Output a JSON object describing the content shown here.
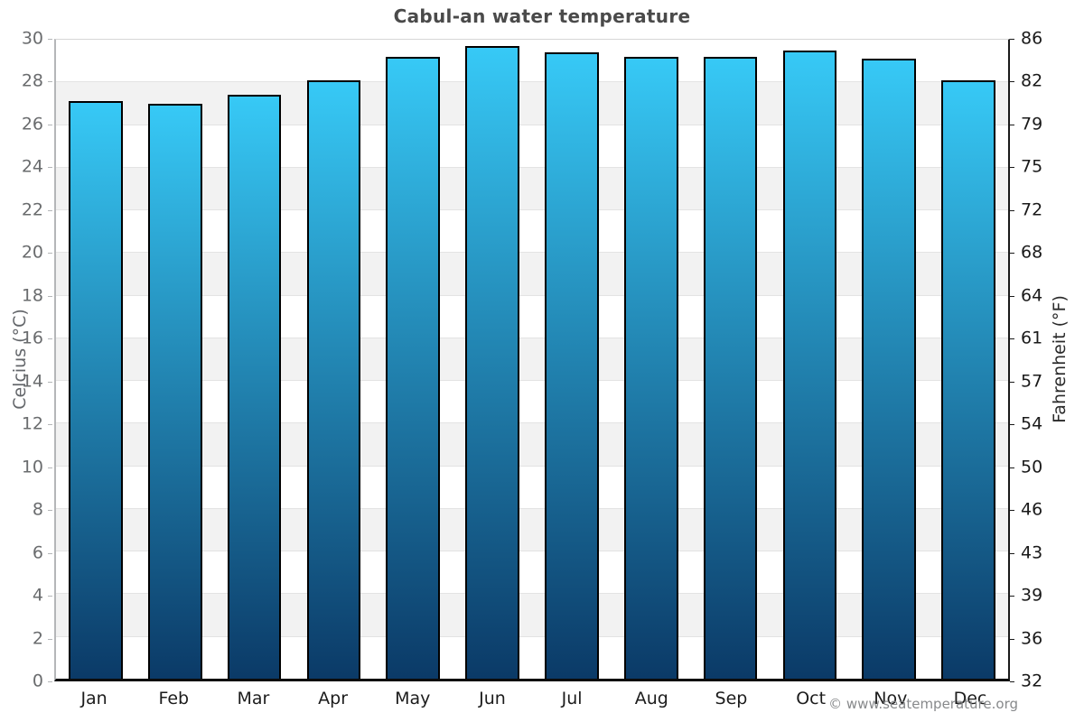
{
  "title": "Cabul-an water temperature",
  "footer": {
    "credit": "© www.seatemperature.org"
  },
  "chart_data": {
    "type": "bar",
    "title": "Cabul-an water temperature",
    "categories": [
      "Jan",
      "Feb",
      "Mar",
      "Apr",
      "May",
      "Jun",
      "Jul",
      "Aug",
      "Sep",
      "Oct",
      "Nov",
      "Dec"
    ],
    "values": [
      27.1,
      27.0,
      27.4,
      28.1,
      29.2,
      29.7,
      29.4,
      29.2,
      29.2,
      29.5,
      29.1,
      28.1
    ],
    "unit": "°C",
    "xlabel": "",
    "ylabel_left": "Celcius (°C)",
    "ylabel_right": "Fahrenheit (°F)",
    "ylim": [
      0,
      30
    ],
    "celsius_ticks": [
      30,
      28,
      26,
      24,
      22,
      20,
      18,
      16,
      14,
      12,
      10,
      8,
      6,
      4,
      2,
      0
    ],
    "fahrenheit_ticks": [
      86,
      82,
      79,
      75,
      72,
      68,
      64,
      61,
      57,
      54,
      50,
      46,
      43,
      39,
      36,
      32
    ],
    "legend": "none",
    "grid": "alternating horizontal bands every 2°C with light gridlines",
    "colors": {
      "bar_top": "#37c9f6",
      "bar_bottom": "#0b3a67",
      "bar_border": "#000000",
      "band_gray": "#f2f2f2",
      "band_white": "#ffffff",
      "gridline": "#e3e3e3",
      "axis_left": "#b4b6b8",
      "axis_right": "#1a1a1a",
      "axis_bottom": "#0b0b0b",
      "title_text": "#4a4a4a",
      "left_tick_text": "#6a6c6e",
      "right_tick_text": "#1a1a1a",
      "month_text": "#1c1c1c",
      "credit_text": "#87898b"
    }
  }
}
